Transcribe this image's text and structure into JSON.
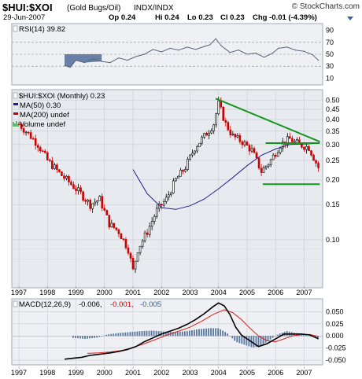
{
  "header": {
    "symbol": "$HUI:$XOI",
    "name": "(Gold Bugs/Oil)",
    "exchange": "INDX/INDX",
    "watermark": "© StockCharts.com",
    "date": "29-Jun-2007",
    "op": "Op 0.24",
    "hi": "Hi 0.24",
    "lo": "Lo 0.23",
    "cl": "Cl 0.23",
    "chg": "Chg -0.01 (-4.39%)"
  },
  "colors": {
    "frame": "#a3a9b4",
    "panel_bg": "#e7eaee",
    "price_bar": "#000000",
    "down_bar": "#cc0000",
    "ma50": "#20208a",
    "trendline": "#14961e",
    "rsi_line": "#5a6478",
    "rsi_fill": "#3c5a8c",
    "macd_line": "#000000",
    "signal_line": "#e02020",
    "histogram": "#5a78a0"
  },
  "legend": {
    "rsi": "RSI(14) 39.82",
    "price_title": "$HUI:$XOI (Monthly) 0.23",
    "ma50": "MA(50) 0.30",
    "ma200": "MA(200) undef",
    "volume": "Volume undef",
    "macd_label": "MACD(12,26,9)",
    "macd_value": "-0.006,",
    "macd_signal": "-0.001,",
    "macd_hist": "-0.005"
  },
  "chart_data": [
    {
      "type": "line",
      "panel": "rsi",
      "title": "RSI(14) 39.82",
      "y_ticks": [
        "90",
        "70",
        "50",
        "30",
        "10"
      ],
      "levels": [
        70,
        50,
        30
      ],
      "ylim": [
        0,
        100
      ],
      "x": [
        1998.6,
        1998.8,
        1999.0,
        1999.3,
        1999.6,
        1999.9,
        2000.2,
        2000.5,
        2000.8,
        2001.1,
        2001.4,
        2001.7,
        2002.0,
        2002.3,
        2002.6,
        2002.9,
        2003.2,
        2003.5,
        2003.7,
        2003.9,
        2004.1,
        2004.4,
        2004.7,
        2005.0,
        2005.3,
        2005.6,
        2005.9,
        2006.1,
        2006.4,
        2006.7,
        2007.0,
        2007.3,
        2007.5
      ],
      "values": [
        31,
        28,
        40,
        36,
        42,
        38,
        36,
        44,
        40,
        46,
        50,
        58,
        54,
        60,
        57,
        62,
        58,
        63,
        66,
        76,
        64,
        53,
        57,
        50,
        52,
        45,
        52,
        60,
        62,
        57,
        55,
        49,
        40
      ]
    },
    {
      "type": "candlestick",
      "panel": "price",
      "title": "$HUI:$XOI (Monthly) 0.23",
      "scale": "log",
      "y_ticks": [
        "0.50",
        "0.45",
        "0.40",
        "0.35",
        "0.30",
        "0.25",
        "0.20",
        "0.15",
        "0.10"
      ],
      "ylim": [
        0.058,
        0.56
      ],
      "series": [
        {
          "name": "$HUI:$XOI",
          "x": [
            1997.0,
            1997.33,
            1997.67,
            1998.0,
            1998.5,
            1998.83,
            1999.17,
            1999.5,
            1999.83,
            2000.17,
            2000.5,
            2000.83,
            2001.0,
            2001.17,
            2001.5,
            2001.83,
            2002.17,
            2002.5,
            2002.83,
            2003.17,
            2003.5,
            2003.83,
            2004.0,
            2004.25,
            2004.5,
            2004.83,
            2005.17,
            2005.5,
            2005.83,
            2006.17,
            2006.5,
            2006.83,
            2007.17,
            2007.5
          ],
          "values": [
            0.38,
            0.34,
            0.3,
            0.25,
            0.21,
            0.19,
            0.17,
            0.15,
            0.16,
            0.12,
            0.11,
            0.09,
            0.07,
            0.09,
            0.11,
            0.14,
            0.16,
            0.2,
            0.23,
            0.29,
            0.33,
            0.38,
            0.48,
            0.38,
            0.33,
            0.31,
            0.28,
            0.22,
            0.25,
            0.3,
            0.32,
            0.3,
            0.29,
            0.23
          ]
        },
        {
          "name": "MA(50) 0.30",
          "x": [
            2001.0,
            2001.5,
            2002.0,
            2002.5,
            2003.0,
            2003.5,
            2004.0,
            2004.5,
            2005.0,
            2005.5,
            2006.0,
            2006.5,
            2007.0,
            2007.4
          ],
          "values": [
            0.225,
            0.17,
            0.145,
            0.142,
            0.148,
            0.16,
            0.18,
            0.205,
            0.235,
            0.265,
            0.285,
            0.3,
            0.302,
            0.304
          ]
        }
      ],
      "trendlines": [
        {
          "x": [
            2003.9,
            2007.55
          ],
          "values": [
            0.51,
            0.31
          ]
        },
        {
          "x": [
            2005.65,
            2007.55
          ],
          "values": [
            0.305,
            0.305
          ]
        },
        {
          "x": [
            2005.55,
            2007.55
          ],
          "values": [
            0.19,
            0.19
          ]
        }
      ]
    },
    {
      "type": "line",
      "panel": "macd",
      "title": "MACD(12,26,9)",
      "y_ticks": [
        "0.050",
        "0.025",
        "0.000",
        "-0.025",
        "-0.050"
      ],
      "ylim": [
        -0.058,
        0.075
      ],
      "x_ticks": [
        "1997",
        "1998",
        "1999",
        "2000",
        "2001",
        "2002",
        "2003",
        "2004",
        "2005",
        "2006",
        "2007"
      ],
      "series": [
        {
          "name": "MACD",
          "x": [
            1998.6,
            1998.9,
            1999.2,
            1999.5,
            1999.8,
            2000.2,
            2000.5,
            2000.8,
            2001.1,
            2001.4,
            2001.7,
            2002.0,
            2002.3,
            2002.6,
            2002.9,
            2003.2,
            2003.5,
            2003.8,
            2004.0,
            2004.2,
            2004.4,
            2004.6,
            2004.8,
            2005.1,
            2005.4,
            2005.7,
            2006.0,
            2006.3,
            2006.6,
            2006.9,
            2007.2,
            2007.5
          ],
          "values": [
            -0.048,
            -0.046,
            -0.044,
            -0.04,
            -0.038,
            -0.035,
            -0.032,
            -0.028,
            -0.022,
            -0.012,
            -0.004,
            0.004,
            0.01,
            0.016,
            0.024,
            0.034,
            0.046,
            0.06,
            0.068,
            0.062,
            0.044,
            0.018,
            0.002,
            -0.01,
            -0.022,
            -0.016,
            -0.006,
            0.004,
            0.004,
            0.004,
            0.002,
            -0.006
          ]
        },
        {
          "name": "Signal",
          "x": [
            1999.4,
            1999.8,
            2000.2,
            2000.6,
            2001.0,
            2001.4,
            2001.8,
            2002.2,
            2002.6,
            2003.0,
            2003.4,
            2003.8,
            2004.2,
            2004.5,
            2004.8,
            2005.1,
            2005.4,
            2005.7,
            2006.0,
            2006.3,
            2006.6,
            2006.9,
            2007.2,
            2007.5
          ],
          "values": [
            -0.036,
            -0.035,
            -0.033,
            -0.03,
            -0.024,
            -0.016,
            -0.007,
            0.002,
            0.01,
            0.018,
            0.03,
            0.044,
            0.054,
            0.048,
            0.034,
            0.016,
            0.0,
            -0.01,
            -0.012,
            -0.006,
            0.0,
            0.003,
            0.003,
            -0.001
          ]
        },
        {
          "name": "Histogram",
          "x": [
            1998.9,
            1999.3,
            1999.7,
            2000.1,
            2000.5,
            2000.9,
            2001.3,
            2001.7,
            2002.1,
            2002.5,
            2002.9,
            2003.3,
            2003.7,
            2004.0,
            2004.3,
            2004.6,
            2004.9,
            2005.2,
            2005.5,
            2005.8,
            2006.1,
            2006.4,
            2006.7,
            2007.0,
            2007.3,
            2007.5
          ],
          "values": [
            -0.004,
            -0.006,
            -0.004,
            0.003,
            0.006,
            0.008,
            0.01,
            0.011,
            0.009,
            0.008,
            0.01,
            0.014,
            0.016,
            0.016,
            0.006,
            -0.012,
            -0.018,
            -0.024,
            -0.02,
            -0.008,
            0.004,
            0.01,
            0.006,
            0.002,
            -0.001,
            -0.005
          ]
        }
      ]
    }
  ]
}
